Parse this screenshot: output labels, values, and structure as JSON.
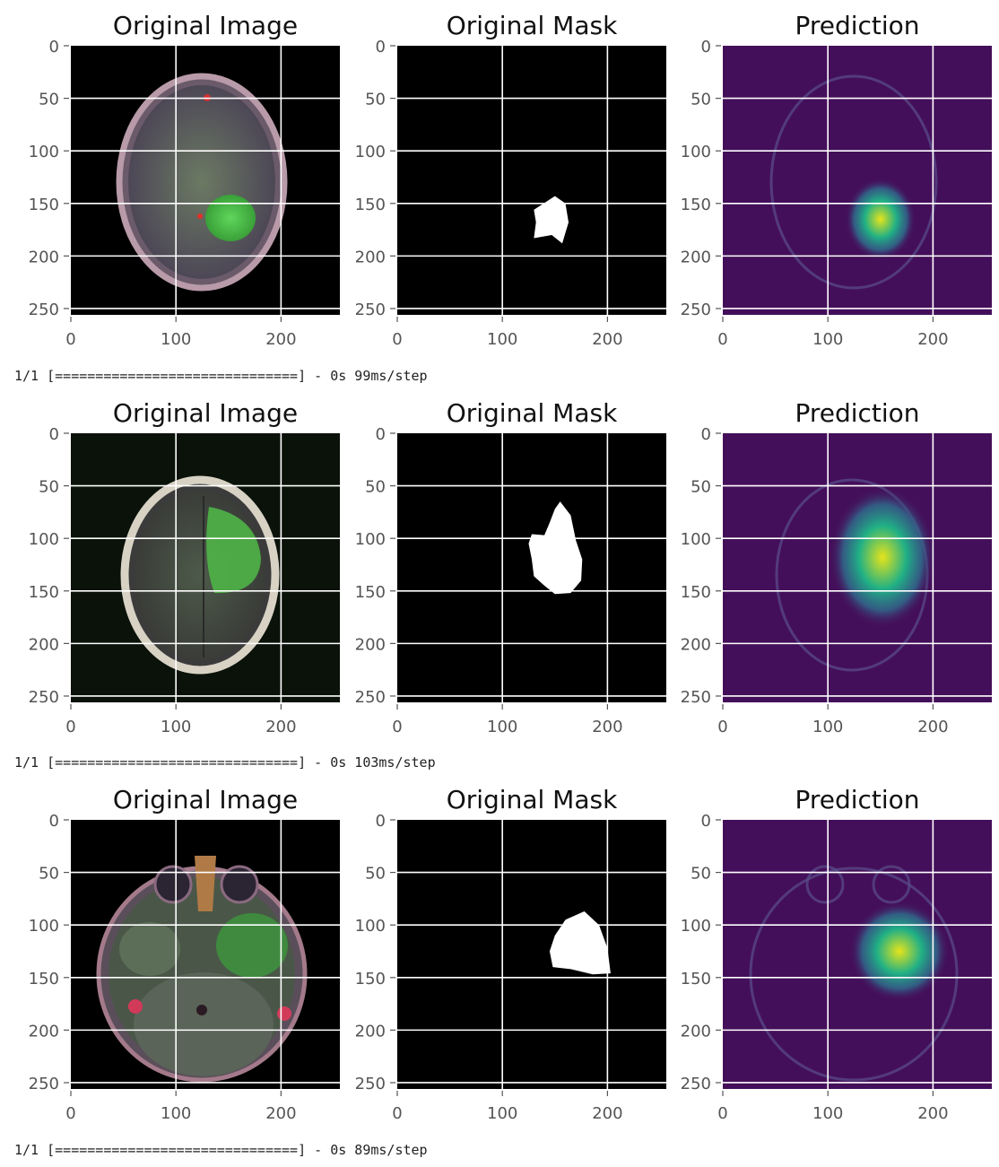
{
  "rows": [
    {
      "panels": [
        {
          "title": "Original Image",
          "type": "mri",
          "variant": 0
        },
        {
          "title": "Original Mask",
          "type": "mask",
          "variant": 0
        },
        {
          "title": "Prediction",
          "type": "pred",
          "variant": 0
        }
      ],
      "log": "1/1 [==============================] - 0s 99ms/step"
    },
    {
      "panels": [
        {
          "title": "Original Image",
          "type": "mri",
          "variant": 1
        },
        {
          "title": "Original Mask",
          "type": "mask",
          "variant": 1
        },
        {
          "title": "Prediction",
          "type": "pred",
          "variant": 1
        }
      ],
      "log": "1/1 [==============================] - 0s 103ms/step"
    },
    {
      "panels": [
        {
          "title": "Original Image",
          "type": "mri",
          "variant": 2
        },
        {
          "title": "Original Mask",
          "type": "mask",
          "variant": 2
        },
        {
          "title": "Prediction",
          "type": "pred",
          "variant": 2
        }
      ],
      "log": "1/1 [==============================] - 0s 89ms/step"
    }
  ],
  "axes": {
    "x_ticks": [
      "0",
      "100",
      "200"
    ],
    "y_ticks": [
      "0",
      "50",
      "100",
      "150",
      "200",
      "250"
    ],
    "x_tick_values": [
      0,
      100,
      200
    ],
    "y_tick_values": [
      0,
      50,
      100,
      150,
      200,
      250
    ],
    "range": [
      0,
      256
    ]
  },
  "colors": {
    "mask_bg": "#000000",
    "mask_fg": "#ffffff",
    "pred_bg": "#440f5a",
    "pred_mid": "#2f6f8e",
    "pred_hot": "#20b085",
    "pred_peak": "#e5e41a",
    "grid": "#ffffff"
  }
}
